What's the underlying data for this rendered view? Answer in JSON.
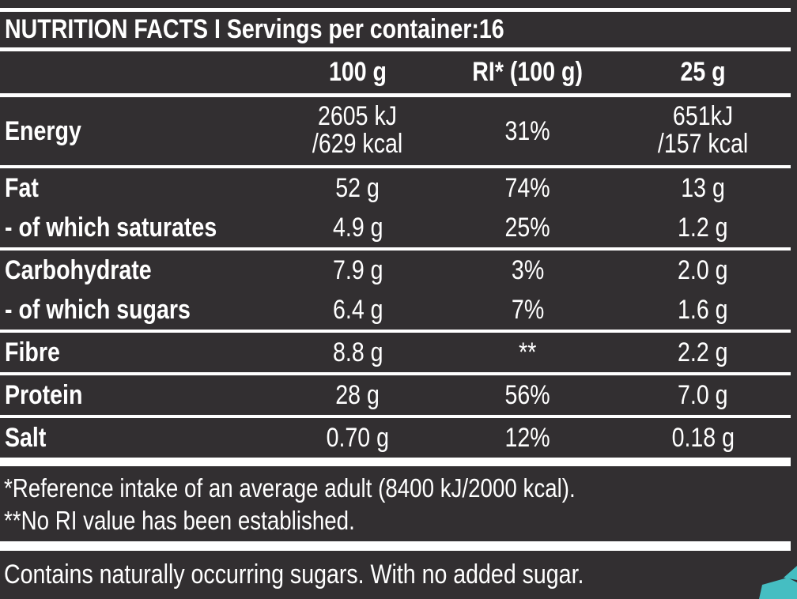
{
  "colors": {
    "background": "#322f31",
    "text": "#ffffff",
    "rule": "#ffffff",
    "accent_teal": "#45bec2"
  },
  "header": {
    "title": "NUTRITION FACTS I Servings per container:16"
  },
  "table": {
    "column_headers": [
      "100 g",
      "RI* (100 g)",
      "25 g"
    ],
    "groups": [
      {
        "rows": [
          {
            "label": "Energy",
            "per_100g": [
              "2605 kJ",
              "/629 kcal"
            ],
            "ri_100g": "31%",
            "per_25g": [
              "651kJ",
              "/157 kcal"
            ]
          }
        ]
      },
      {
        "rows": [
          {
            "label": "Fat",
            "per_100g": "52 g",
            "ri_100g": "74%",
            "per_25g": "13 g"
          },
          {
            "label": "- of which saturates",
            "per_100g": "4.9 g",
            "ri_100g": "25%",
            "per_25g": "1.2 g"
          }
        ]
      },
      {
        "rows": [
          {
            "label": "Carbohydrate",
            "per_100g": "7.9 g",
            "ri_100g": "3%",
            "per_25g": "2.0 g"
          },
          {
            "label": "- of which sugars",
            "per_100g": "6.4 g",
            "ri_100g": "7%",
            "per_25g": "1.6 g"
          }
        ]
      },
      {
        "rows": [
          {
            "label": "Fibre",
            "per_100g": "8.8 g",
            "ri_100g": "**",
            "per_25g": "2.2 g"
          }
        ]
      },
      {
        "rows": [
          {
            "label": "Protein",
            "per_100g": "28 g",
            "ri_100g": "56%",
            "per_25g": "7.0 g"
          }
        ]
      },
      {
        "rows": [
          {
            "label": "Salt",
            "per_100g": "0.70 g",
            "ri_100g": "12%",
            "per_25g": "0.18 g"
          }
        ]
      }
    ]
  },
  "footnotes": [
    "*Reference intake of an average adult (8400 kJ/2000 kcal).",
    "**No RI value has been established."
  ],
  "bottom_note": "Contains naturally occurring sugars. With no added sugar.",
  "decoration": {
    "corner_shape": "teal-corner-graphic"
  }
}
